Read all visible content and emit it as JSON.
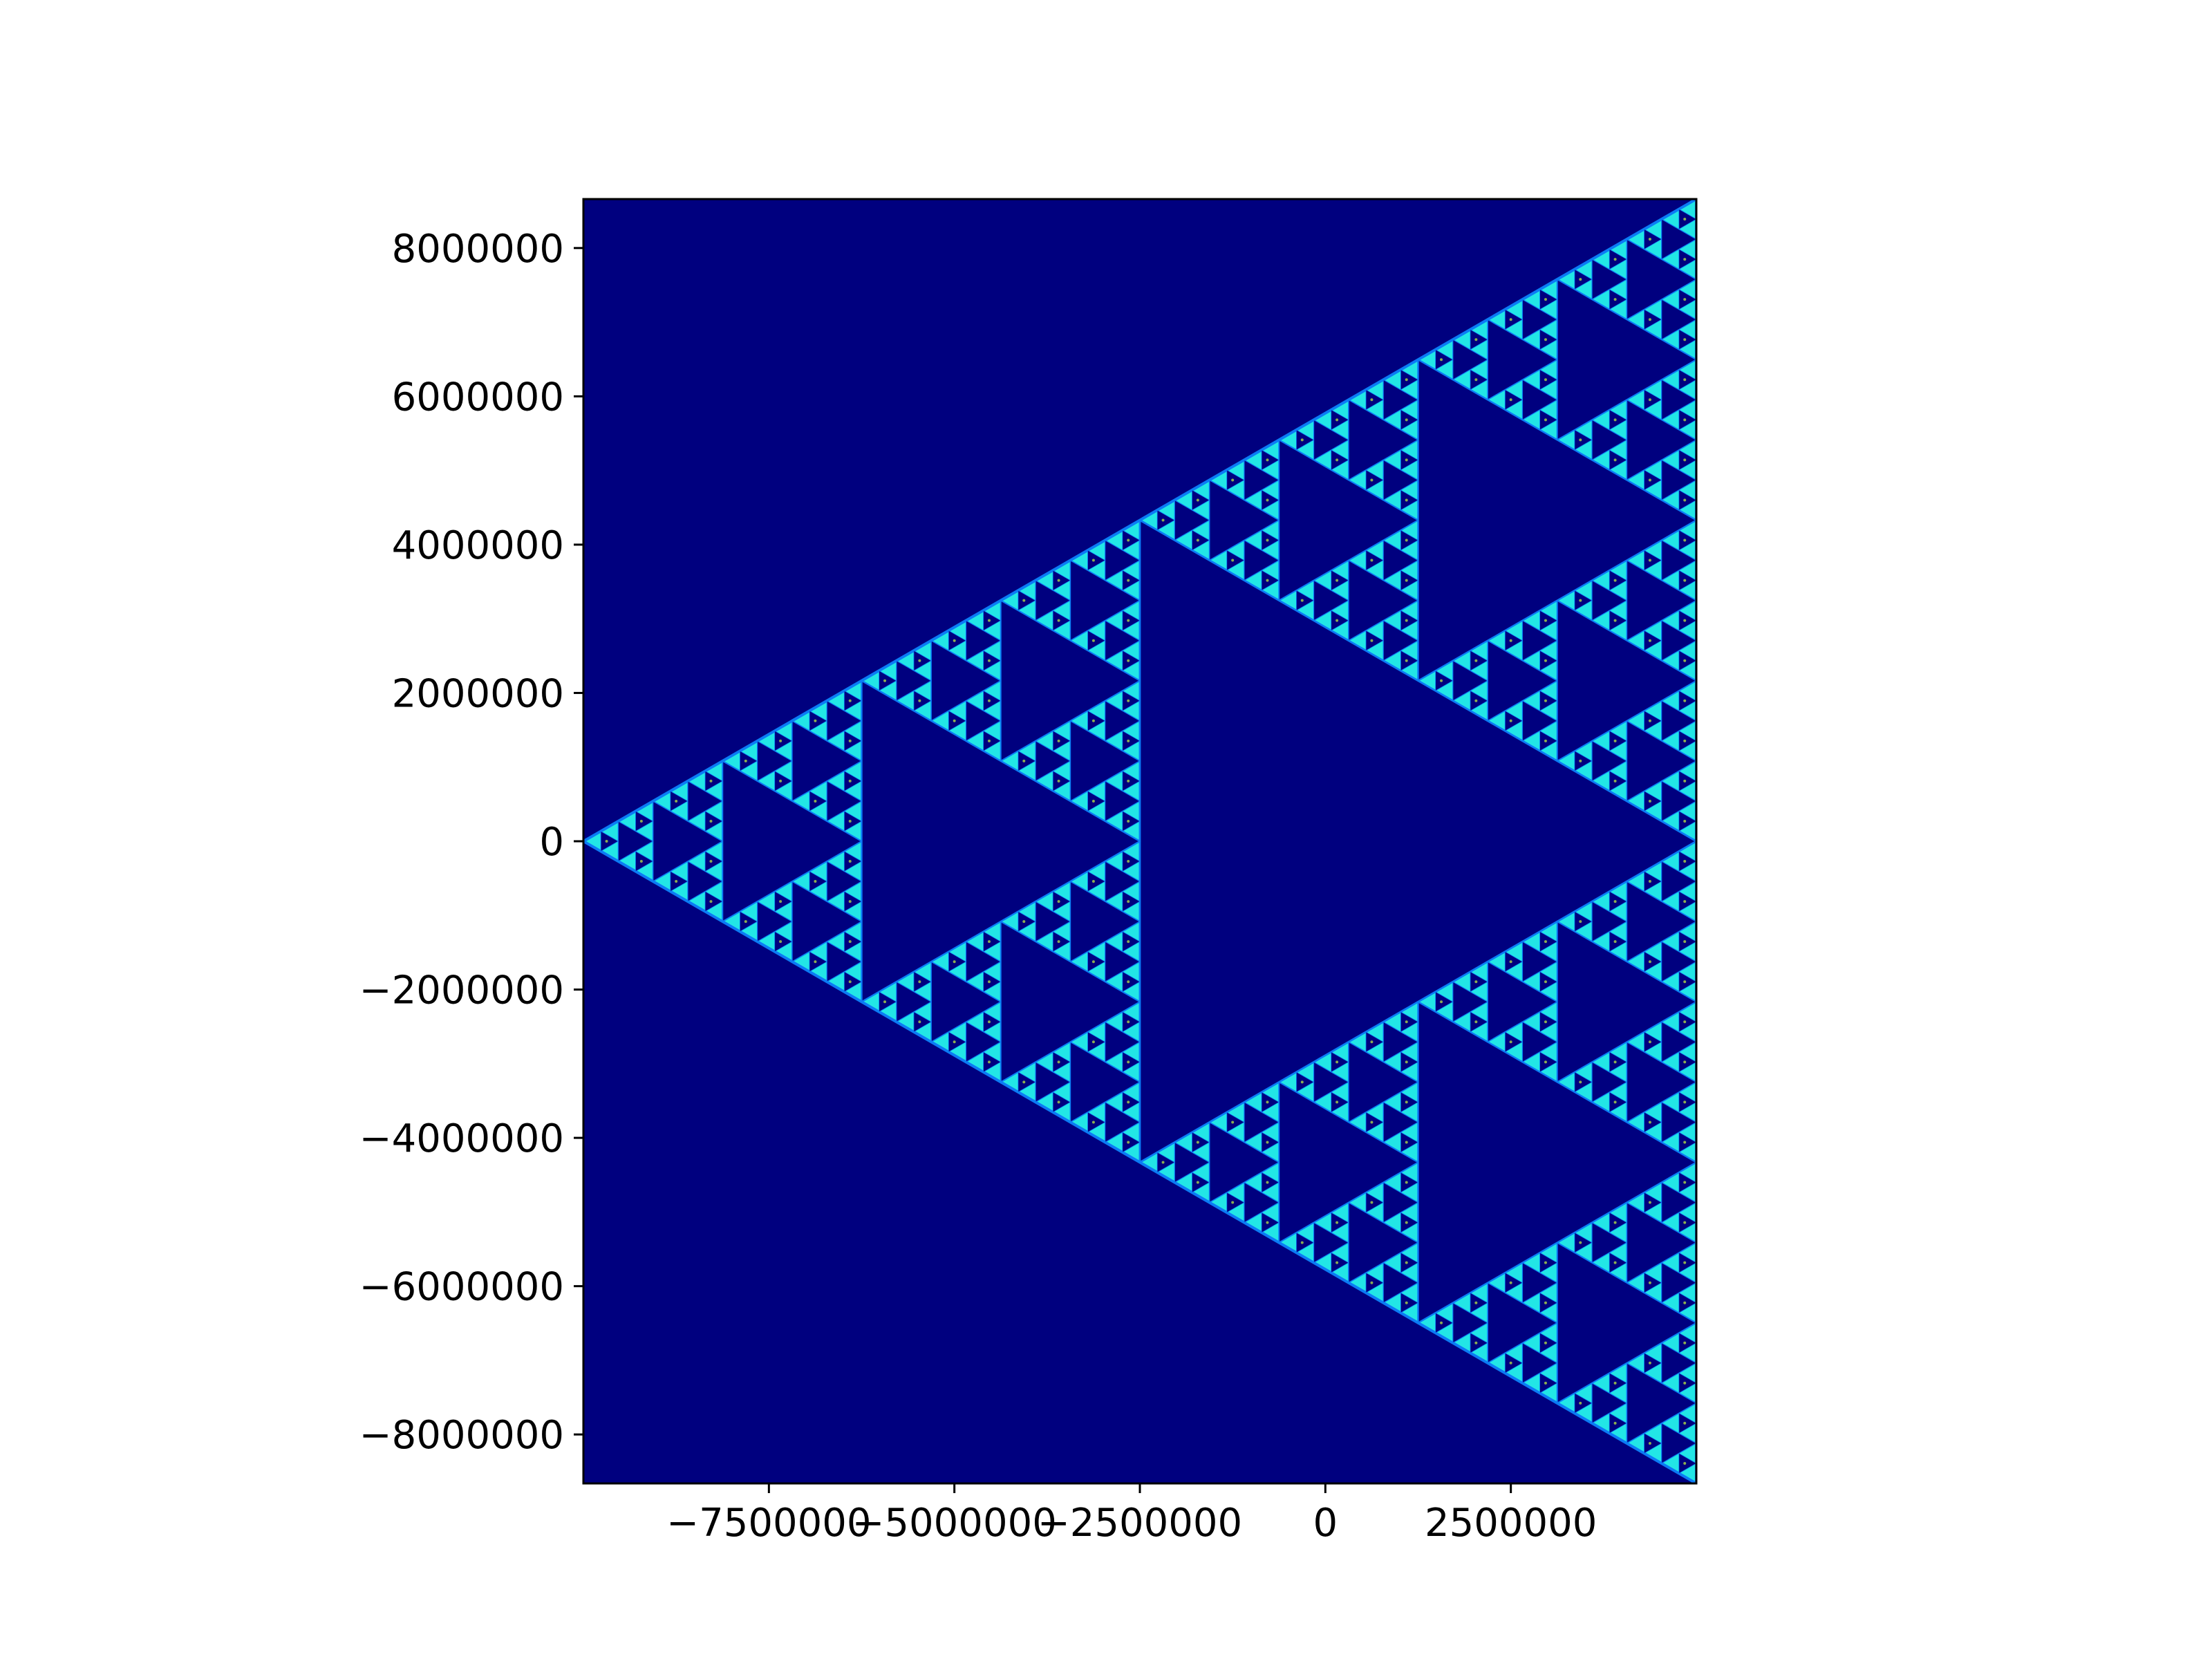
{
  "chart_data": {
    "type": "heatmap",
    "title": "",
    "xlabel": "",
    "ylabel": "",
    "xlim": [
      -10000000,
      5000000
    ],
    "ylim": [
      -8660254,
      8660254
    ],
    "x_ticks": [
      -7500000,
      -5000000,
      -2500000,
      0,
      2500000
    ],
    "x_tick_labels": [
      "−7500000",
      "−5000000",
      "−2500000",
      "0",
      "2500000"
    ],
    "y_ticks": [
      -8000000,
      -6000000,
      -4000000,
      -2000000,
      0,
      2000000,
      4000000,
      6000000,
      8000000
    ],
    "y_tick_labels": [
      "−8000000",
      "−6000000",
      "−4000000",
      "−2000000",
      "0",
      "2000000",
      "4000000",
      "6000000",
      "8000000"
    ],
    "image": {
      "description_pattern": "sierpinski-triangle",
      "apex": [
        -10000000,
        0
      ],
      "base_top": [
        5000000,
        8660254
      ],
      "base_bottom": [
        5000000,
        -8660254
      ],
      "levels_rendered": 6
    },
    "colormap": "jet",
    "colors": {
      "background": "#00007f",
      "edge": "#0b7bf5",
      "glow": "#22e6e6",
      "speckle": "#c8f53c"
    },
    "grid": false,
    "legend": "none"
  }
}
